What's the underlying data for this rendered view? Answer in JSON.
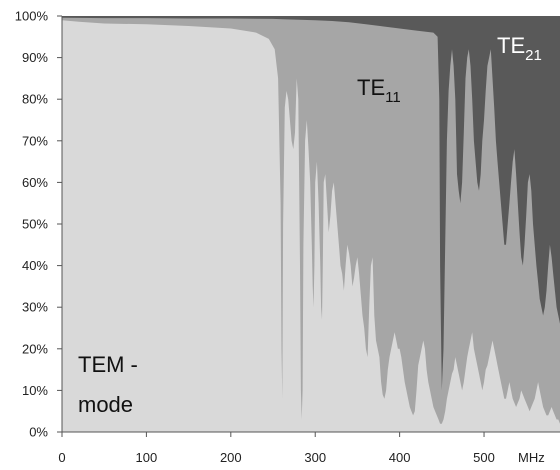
{
  "chart_data": {
    "type": "area",
    "title": "",
    "xlabel": "MHz",
    "ylabel": "",
    "xlim": [
      0,
      590
    ],
    "ylim": [
      0,
      100
    ],
    "x_ticks": [
      0,
      100,
      200,
      300,
      400,
      500
    ],
    "y_ticks": [
      0,
      10,
      20,
      30,
      40,
      50,
      60,
      70,
      80,
      90,
      100
    ],
    "y_tick_suffix": "%",
    "grid": false,
    "legend": "none",
    "series": [
      {
        "name": "TEM - mode",
        "color": "#d9d9d9",
        "x": [
          0,
          20,
          50,
          100,
          150,
          200,
          230,
          245,
          252,
          256,
          259,
          260,
          261,
          262,
          264,
          266,
          268,
          270,
          272,
          274,
          276,
          278,
          280,
          282,
          283,
          284,
          285,
          286,
          288,
          290,
          292,
          294,
          296,
          297,
          298,
          299,
          300,
          302,
          304,
          306,
          307,
          308,
          309,
          310,
          312,
          314,
          316,
          318,
          320,
          322,
          324,
          326,
          328,
          330,
          332,
          334,
          336,
          338,
          340,
          342,
          344,
          346,
          348,
          350,
          352,
          354,
          356,
          358,
          360,
          362,
          364,
          366,
          368,
          370,
          372,
          374,
          376,
          378,
          380,
          382,
          384,
          386,
          388,
          390,
          392,
          394,
          396,
          398,
          400,
          402,
          404,
          406,
          408,
          410,
          412,
          414,
          416,
          418,
          420,
          422,
          424,
          426,
          428,
          430,
          432,
          434,
          436,
          438,
          440,
          442,
          444,
          446,
          448,
          450,
          452,
          454,
          456,
          458,
          460,
          462,
          464,
          466,
          468,
          470,
          472,
          474,
          476,
          478,
          480,
          482,
          484,
          486,
          488,
          490,
          492,
          494,
          496,
          498,
          500,
          502,
          504,
          506,
          508,
          510,
          512,
          514,
          516,
          518,
          520,
          522,
          524,
          526,
          528,
          530,
          532,
          534,
          536,
          538,
          540,
          542,
          544,
          546,
          548,
          550,
          552,
          554,
          556,
          558,
          560,
          562,
          564,
          566,
          568,
          570,
          572,
          574,
          576,
          578,
          580,
          582,
          584,
          586,
          588,
          590
        ],
        "values": [
          99,
          98.6,
          98.2,
          98,
          97.6,
          97,
          96,
          94.5,
          92,
          85,
          55,
          20,
          8,
          50,
          78,
          82,
          80,
          75,
          70,
          68,
          72,
          85,
          80,
          40,
          10,
          3,
          10,
          45,
          70,
          75,
          68,
          60,
          45,
          35,
          30,
          40,
          60,
          65,
          55,
          40,
          30,
          27,
          40,
          60,
          62,
          55,
          48,
          52,
          58,
          60,
          55,
          50,
          45,
          40,
          38,
          34,
          40,
          45,
          43,
          40,
          35,
          37,
          40,
          42,
          38,
          33,
          28,
          25,
          20,
          18,
          30,
          40,
          42,
          28,
          22,
          20,
          18,
          12,
          9,
          8,
          10,
          15,
          18,
          20,
          22,
          24,
          22,
          20,
          20,
          18,
          15,
          12,
          10,
          8,
          6,
          5,
          4,
          5,
          10,
          16,
          18,
          20,
          22,
          20,
          15,
          12,
          10,
          8,
          6,
          5,
          4,
          3,
          2,
          2,
          3,
          5,
          8,
          10,
          12,
          14,
          15,
          18,
          16,
          14,
          12,
          10,
          12,
          15,
          18,
          20,
          22,
          24,
          20,
          18,
          16,
          14,
          12,
          10,
          12,
          15,
          16,
          18,
          20,
          22,
          20,
          18,
          16,
          14,
          12,
          10,
          8,
          8,
          10,
          12,
          10,
          8,
          7,
          6,
          7,
          8,
          10,
          9,
          8,
          7,
          6,
          5,
          6,
          7,
          8,
          10,
          12,
          10,
          8,
          6,
          5,
          4,
          4,
          5,
          6,
          5,
          4,
          3,
          3,
          2
        ]
      },
      {
        "name": "TE11",
        "color": "#a6a6a6",
        "x": [
          0,
          50,
          100,
          150,
          200,
          250,
          262,
          300,
          320,
          340,
          360,
          380,
          400,
          420,
          440,
          445,
          447,
          448,
          450,
          452,
          454,
          456,
          458,
          460,
          462,
          464,
          466,
          468,
          470,
          472,
          474,
          476,
          478,
          480,
          482,
          484,
          486,
          488,
          490,
          492,
          494,
          496,
          498,
          500,
          502,
          504,
          506,
          508,
          510,
          512,
          514,
          516,
          518,
          520,
          522,
          524,
          526,
          528,
          530,
          532,
          534,
          536,
          538,
          540,
          542,
          544,
          546,
          548,
          550,
          552,
          554,
          556,
          558,
          560,
          562,
          564,
          566,
          568,
          570,
          572,
          574,
          576,
          578,
          580,
          582,
          584,
          586,
          588,
          590
        ],
        "values": [
          99.6,
          99.5,
          99.5,
          99.4,
          99.4,
          99.3,
          99.2,
          99,
          98.8,
          98.5,
          98,
          97.5,
          97,
          96.5,
          96,
          95,
          80,
          40,
          10,
          20,
          45,
          70,
          82,
          88,
          92,
          88,
          80,
          62,
          58,
          55,
          60,
          72,
          85,
          90,
          92,
          88,
          80,
          70,
          65,
          60,
          58,
          62,
          70,
          75,
          82,
          88,
          90,
          92,
          85,
          78,
          70,
          65,
          60,
          55,
          50,
          45,
          45,
          50,
          55,
          60,
          65,
          68,
          62,
          55,
          48,
          42,
          40,
          45,
          52,
          60,
          62,
          58,
          50,
          45,
          40,
          36,
          32,
          30,
          28,
          30,
          34,
          40,
          45,
          42,
          38,
          34,
          30,
          28,
          26
        ]
      },
      {
        "name": "TE21",
        "color": "#595959",
        "x": [
          0,
          590
        ],
        "values": [
          100,
          100
        ]
      }
    ],
    "annotations": [
      {
        "text_main": "TEM -",
        "text_sub": "mode"
      },
      {
        "text_main": "TE",
        "text_sub": "11"
      },
      {
        "text_main": "TE",
        "text_sub": "21"
      }
    ]
  }
}
